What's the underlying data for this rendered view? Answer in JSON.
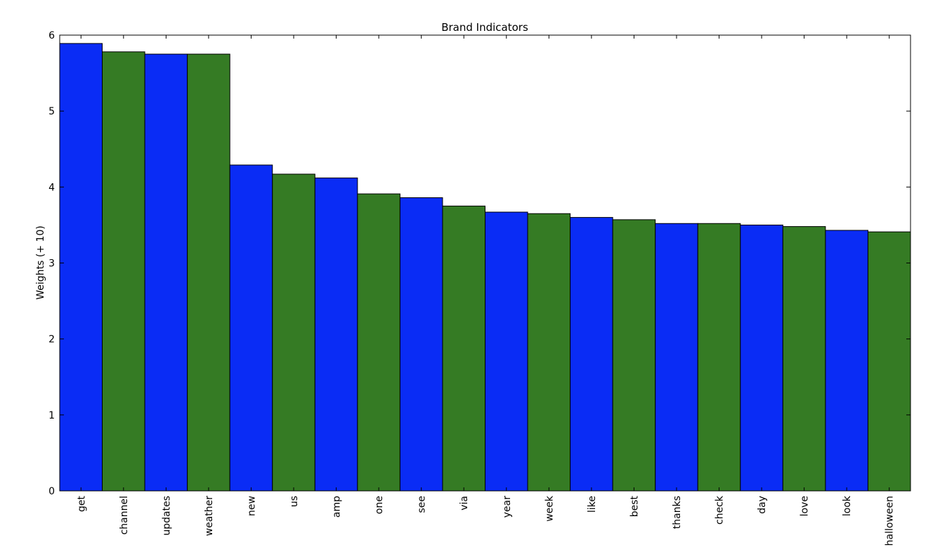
{
  "chart_data": {
    "type": "bar",
    "title": "Brand Indicators",
    "xlabel": "",
    "ylabel": "Weights (+ 10)",
    "ylim": [
      0,
      6
    ],
    "yticks": [
      "0",
      "1",
      "2",
      "3",
      "4",
      "5",
      "6"
    ],
    "grid": false,
    "legend": "none",
    "categories": [
      "get",
      "channel",
      "updates",
      "weather",
      "new",
      "us",
      "amp",
      "one",
      "see",
      "via",
      "year",
      "week",
      "like",
      "best",
      "thanks",
      "check",
      "day",
      "love",
      "look",
      "halloween"
    ],
    "values": [
      5.89,
      5.78,
      5.75,
      5.75,
      4.29,
      4.17,
      4.12,
      3.91,
      3.86,
      3.75,
      3.67,
      3.65,
      3.6,
      3.57,
      3.52,
      3.52,
      3.5,
      3.48,
      3.43,
      3.41
    ],
    "bar_colors": [
      "#0a2cf5",
      "#357b24"
    ]
  }
}
